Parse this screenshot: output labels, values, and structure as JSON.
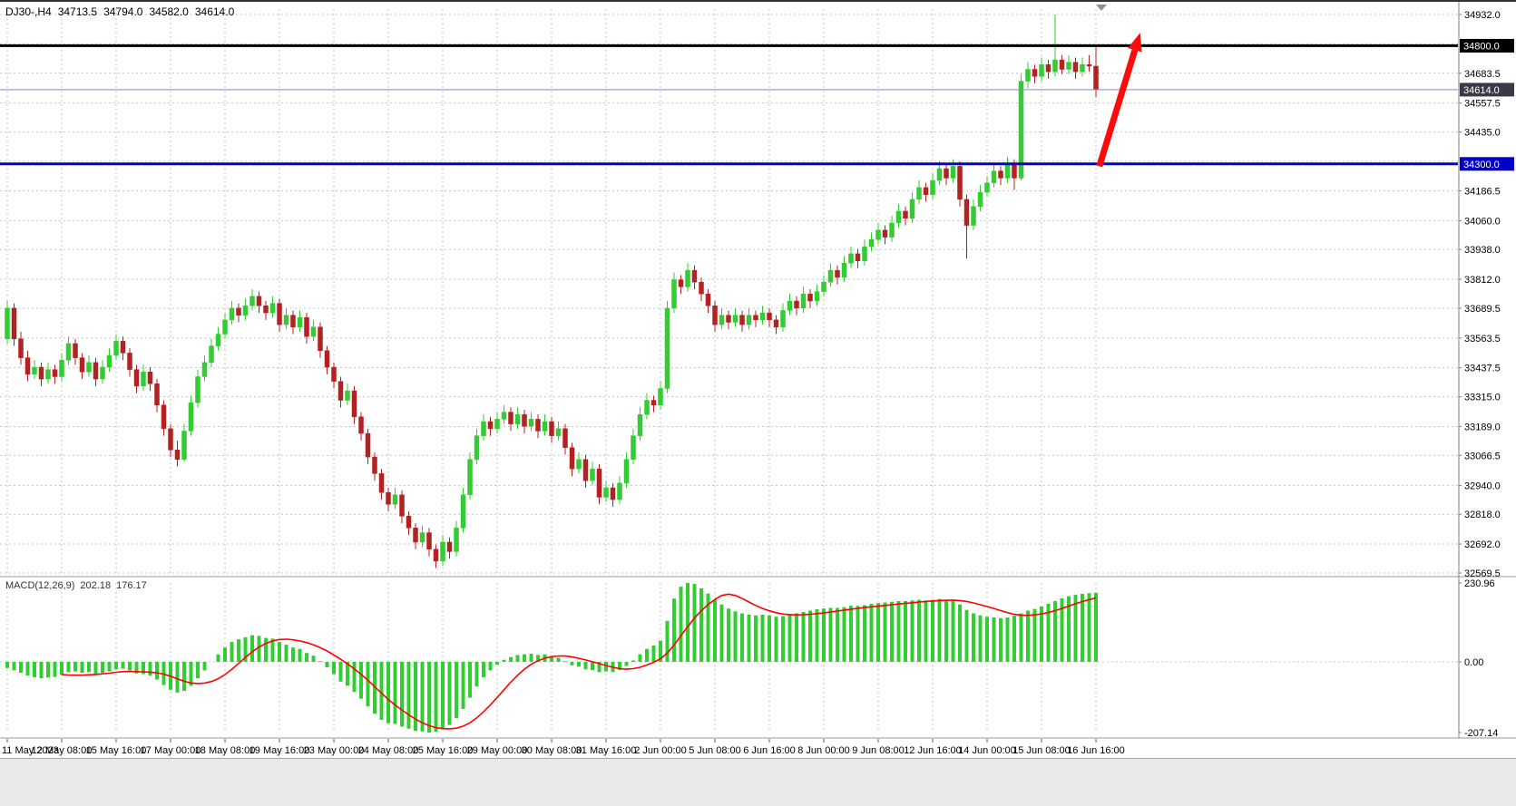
{
  "header": {
    "symbol_period": "DJ30-,H4",
    "open": "34713.5",
    "high": "34794.0",
    "low": "34582.0",
    "close": "34614.0"
  },
  "indicator": {
    "name": "MACD(12,26,9)",
    "main_value": "202.18",
    "signal_value": "176.17"
  },
  "colors": {
    "up_candle": "#33CC33",
    "down_candle": "#B22222",
    "grid": "#c4c4c4",
    "bid_line": "#8A8AB5",
    "axis_text": "#000000",
    "badge_text": "#FFFFFF",
    "separator": "#9a9a9a",
    "scale_border": "#808080"
  },
  "chart_data": [
    {
      "type": "candlestick",
      "symbol": "DJ30-",
      "timeframe": "H4",
      "title": "DJ30- H4 candlestick chart",
      "bars_per_label": 8,
      "x_labels": [
        "11 May 2023",
        "12 May 08:00",
        "15 May 16:00",
        "17 May 00:00",
        "18 May 08:00",
        "19 May 16:00",
        "23 May 00:00",
        "24 May 08:00",
        "25 May 16:00",
        "29 May 00:00",
        "30 May 08:00",
        "31 May 16:00",
        "2 Jun 00:00",
        "5 Jun 08:00",
        "6 Jun 16:00",
        "8 Jun 00:00",
        "9 Jun 08:00",
        "12 Jun 16:00",
        "14 Jun 00:00",
        "15 Jun 08:00",
        "16 Jun 16:00"
      ],
      "ylim": [
        32569.5,
        34932.0
      ],
      "y_ticks": [
        34932.0,
        34683.5,
        34557.5,
        34435.0,
        34186.5,
        34060.0,
        33938.0,
        33812.0,
        33689.5,
        33563.5,
        33437.5,
        33315.0,
        33189.0,
        33066.5,
        32940.0,
        32818.0,
        32692.0,
        32569.5
      ],
      "grid_levels": [
        34932.0,
        34808.5,
        34683.5,
        34557.5,
        34435.0,
        34311.5,
        34186.5,
        34060.0,
        33938.0,
        33812.0,
        33689.5,
        33563.5,
        33437.5,
        33315.0,
        33189.0,
        33066.5,
        32940.0,
        32818.0,
        32692.0,
        32569.5
      ],
      "hlines": [
        {
          "name": "resistance-line-34800",
          "value": 34800.0,
          "color": "#000000",
          "width": 3
        },
        {
          "name": "support-line-34300",
          "value": 34300.0,
          "color": "#0000C8",
          "width": 3
        }
      ],
      "current_price": 34614.0,
      "price_badges": [
        {
          "value": 34800.0,
          "bg": "#000000"
        },
        {
          "value": 34614.0,
          "bg": "#3A3A46"
        },
        {
          "value": 34300.0,
          "bg": "#0000C8"
        }
      ],
      "annotations": [
        {
          "type": "arrow",
          "color": "#FF0A0A",
          "x1_bar": 160.5,
          "y1": 34290,
          "x2_bar": 166.5,
          "y2": 34855
        }
      ],
      "candles": [
        [
          33560,
          33720,
          33540,
          33690
        ],
        [
          33690,
          33710,
          33530,
          33560
        ],
        [
          33560,
          33590,
          33450,
          33480
        ],
        [
          33480,
          33510,
          33380,
          33410
        ],
        [
          33410,
          33470,
          33390,
          33440
        ],
        [
          33440,
          33460,
          33360,
          33390
        ],
        [
          33390,
          33460,
          33370,
          33430
        ],
        [
          33430,
          33450,
          33370,
          33400
        ],
        [
          33400,
          33500,
          33380,
          33470
        ],
        [
          33470,
          33570,
          33450,
          33540
        ],
        [
          33540,
          33560,
          33450,
          33480
        ],
        [
          33480,
          33500,
          33390,
          33420
        ],
        [
          33420,
          33490,
          33400,
          33460
        ],
        [
          33460,
          33480,
          33360,
          33390
        ],
        [
          33390,
          33470,
          33370,
          33440
        ],
        [
          33440,
          33520,
          33420,
          33490
        ],
        [
          33490,
          33580,
          33470,
          33550
        ],
        [
          33550,
          33570,
          33470,
          33500
        ],
        [
          33500,
          33520,
          33400,
          33430
        ],
        [
          33430,
          33450,
          33330,
          33360
        ],
        [
          33360,
          33450,
          33340,
          33420
        ],
        [
          33420,
          33440,
          33340,
          33370
        ],
        [
          33370,
          33390,
          33250,
          33280
        ],
        [
          33280,
          33300,
          33150,
          33180
        ],
        [
          33180,
          33200,
          33060,
          33090
        ],
        [
          33090,
          33130,
          33020,
          33050
        ],
        [
          33050,
          33200,
          33040,
          33170
        ],
        [
          33170,
          33320,
          33150,
          33290
        ],
        [
          33290,
          33430,
          33270,
          33400
        ],
        [
          33400,
          33490,
          33380,
          33460
        ],
        [
          33460,
          33560,
          33440,
          33530
        ],
        [
          33530,
          33610,
          33510,
          33580
        ],
        [
          33580,
          33670,
          33560,
          33640
        ],
        [
          33640,
          33720,
          33620,
          33690
        ],
        [
          33690,
          33710,
          33630,
          33660
        ],
        [
          33660,
          33730,
          33640,
          33700
        ],
        [
          33700,
          33770,
          33680,
          33740
        ],
        [
          33740,
          33760,
          33670,
          33700
        ],
        [
          33700,
          33720,
          33640,
          33670
        ],
        [
          33670,
          33740,
          33650,
          33710
        ],
        [
          33710,
          33730,
          33590,
          33620
        ],
        [
          33620,
          33690,
          33600,
          33660
        ],
        [
          33660,
          33680,
          33580,
          33610
        ],
        [
          33610,
          33680,
          33590,
          33650
        ],
        [
          33650,
          33670,
          33540,
          33570
        ],
        [
          33570,
          33640,
          33550,
          33610
        ],
        [
          33610,
          33630,
          33480,
          33510
        ],
        [
          33510,
          33530,
          33410,
          33440
        ],
        [
          33440,
          33460,
          33350,
          33380
        ],
        [
          33380,
          33400,
          33270,
          33300
        ],
        [
          33300,
          33370,
          33280,
          33340
        ],
        [
          33340,
          33360,
          33200,
          33230
        ],
        [
          33230,
          33250,
          33130,
          33160
        ],
        [
          33160,
          33180,
          33030,
          33060
        ],
        [
          33060,
          33080,
          32960,
          32990
        ],
        [
          32990,
          33010,
          32880,
          32910
        ],
        [
          32910,
          32930,
          32830,
          32860
        ],
        [
          32860,
          32930,
          32840,
          32900
        ],
        [
          32900,
          32920,
          32780,
          32810
        ],
        [
          32810,
          32830,
          32730,
          32760
        ],
        [
          32760,
          32780,
          32670,
          32700
        ],
        [
          32700,
          32770,
          32680,
          32740
        ],
        [
          32740,
          32760,
          32640,
          32670
        ],
        [
          32670,
          32690,
          32590,
          32620
        ],
        [
          32620,
          32730,
          32600,
          32700
        ],
        [
          32700,
          32720,
          32630,
          32660
        ],
        [
          32660,
          32790,
          32640,
          32760
        ],
        [
          32760,
          32930,
          32740,
          32900
        ],
        [
          32900,
          33080,
          32880,
          33050
        ],
        [
          33050,
          33180,
          33030,
          33150
        ],
        [
          33150,
          33240,
          33130,
          33210
        ],
        [
          33210,
          33230,
          33150,
          33180
        ],
        [
          33180,
          33250,
          33160,
          33220
        ],
        [
          33220,
          33280,
          33200,
          33250
        ],
        [
          33250,
          33270,
          33170,
          33200
        ],
        [
          33200,
          33270,
          33180,
          33240
        ],
        [
          33240,
          33260,
          33160,
          33190
        ],
        [
          33190,
          33250,
          33170,
          33220
        ],
        [
          33220,
          33240,
          33140,
          33170
        ],
        [
          33170,
          33240,
          33150,
          33210
        ],
        [
          33210,
          33230,
          33120,
          33150
        ],
        [
          33150,
          33210,
          33130,
          33180
        ],
        [
          33180,
          33200,
          33070,
          33100
        ],
        [
          33100,
          33120,
          32980,
          33010
        ],
        [
          33010,
          33080,
          32990,
          33050
        ],
        [
          33050,
          33070,
          32930,
          32960
        ],
        [
          32960,
          33040,
          32940,
          33010
        ],
        [
          33010,
          33030,
          32860,
          32890
        ],
        [
          32890,
          32960,
          32870,
          32930
        ],
        [
          32930,
          32950,
          32850,
          32880
        ],
        [
          32880,
          32980,
          32860,
          32950
        ],
        [
          32950,
          33080,
          32930,
          33050
        ],
        [
          33050,
          33180,
          33030,
          33150
        ],
        [
          33150,
          33270,
          33130,
          33240
        ],
        [
          33240,
          33330,
          33220,
          33300
        ],
        [
          33300,
          33320,
          33250,
          33280
        ],
        [
          33280,
          33380,
          33260,
          33350
        ],
        [
          33350,
          33720,
          33330,
          33690
        ],
        [
          33690,
          33840,
          33670,
          33810
        ],
        [
          33810,
          33830,
          33750,
          33780
        ],
        [
          33780,
          33880,
          33760,
          33850
        ],
        [
          33850,
          33870,
          33770,
          33800
        ],
        [
          33800,
          33820,
          33720,
          33750
        ],
        [
          33750,
          33770,
          33670,
          33700
        ],
        [
          33700,
          33720,
          33590,
          33620
        ],
        [
          33620,
          33690,
          33600,
          33660
        ],
        [
          33660,
          33680,
          33600,
          33630
        ],
        [
          33630,
          33690,
          33610,
          33660
        ],
        [
          33660,
          33680,
          33590,
          33620
        ],
        [
          33620,
          33690,
          33600,
          33660
        ],
        [
          33660,
          33680,
          33610,
          33640
        ],
        [
          33640,
          33700,
          33620,
          33670
        ],
        [
          33670,
          33690,
          33610,
          33640
        ],
        [
          33640,
          33660,
          33580,
          33610
        ],
        [
          33610,
          33710,
          33590,
          33680
        ],
        [
          33680,
          33750,
          33660,
          33720
        ],
        [
          33720,
          33740,
          33660,
          33690
        ],
        [
          33690,
          33780,
          33670,
          33750
        ],
        [
          33750,
          33770,
          33690,
          33720
        ],
        [
          33720,
          33790,
          33700,
          33760
        ],
        [
          33760,
          33830,
          33740,
          33800
        ],
        [
          33800,
          33880,
          33780,
          33850
        ],
        [
          33850,
          33870,
          33790,
          33820
        ],
        [
          33820,
          33910,
          33800,
          33880
        ],
        [
          33880,
          33950,
          33860,
          33920
        ],
        [
          33920,
          33940,
          33860,
          33890
        ],
        [
          33890,
          33980,
          33870,
          33950
        ],
        [
          33950,
          34010,
          33930,
          33980
        ],
        [
          33980,
          34050,
          33960,
          34020
        ],
        [
          34020,
          34040,
          33960,
          33990
        ],
        [
          33990,
          34080,
          33970,
          34050
        ],
        [
          34050,
          34130,
          34030,
          34100
        ],
        [
          34100,
          34120,
          34040,
          34070
        ],
        [
          34070,
          34180,
          34050,
          34150
        ],
        [
          34150,
          34230,
          34130,
          34200
        ],
        [
          34200,
          34220,
          34140,
          34170
        ],
        [
          34170,
          34260,
          34150,
          34230
        ],
        [
          34230,
          34310,
          34210,
          34280
        ],
        [
          34280,
          34300,
          34210,
          34240
        ],
        [
          34240,
          34320,
          34220,
          34290
        ],
        [
          34290,
          34310,
          34120,
          34150
        ],
        [
          34150,
          34170,
          33900,
          34040
        ],
        [
          34040,
          34150,
          34020,
          34120
        ],
        [
          34120,
          34210,
          34100,
          34180
        ],
        [
          34180,
          34250,
          34160,
          34220
        ],
        [
          34220,
          34300,
          34200,
          34270
        ],
        [
          34270,
          34290,
          34210,
          34240
        ],
        [
          34240,
          34330,
          34220,
          34300
        ],
        [
          34300,
          34320,
          34190,
          34240
        ],
        [
          34240,
          34680,
          34230,
          34650
        ],
        [
          34650,
          34730,
          34620,
          34700
        ],
        [
          34700,
          34720,
          34640,
          34670
        ],
        [
          34670,
          34750,
          34650,
          34720
        ],
        [
          34720,
          34740,
          34660,
          34690
        ],
        [
          34690,
          34932,
          34670,
          34740
        ],
        [
          34740,
          34760,
          34680,
          34700
        ],
        [
          34700,
          34760,
          34680,
          34730
        ],
        [
          34730,
          34750,
          34660,
          34690
        ],
        [
          34690,
          34750,
          34670,
          34720
        ],
        [
          34720,
          34760,
          34690,
          34713.5
        ],
        [
          34713.5,
          34794,
          34582,
          34614
        ]
      ]
    },
    {
      "type": "bar",
      "name": "MACD(12,26,9)",
      "main_value": 202.18,
      "signal_value": 176.17,
      "ylim": [
        -207.14,
        230.96
      ],
      "y_ticks": [
        230.96,
        0,
        -207.14
      ],
      "bar_color": "#32CD32",
      "signal_color": "#FF0000",
      "signal_period": 9,
      "values": [
        -18,
        -25,
        -32,
        -40,
        -45,
        -48,
        -46,
        -44,
        -38,
        -30,
        -28,
        -32,
        -30,
        -36,
        -32,
        -28,
        -22,
        -20,
        -25,
        -34,
        -36,
        -40,
        -52,
        -68,
        -82,
        -90,
        -85,
        -70,
        -48,
        -25,
        0,
        22,
        42,
        58,
        66,
        72,
        78,
        76,
        70,
        68,
        58,
        50,
        42,
        38,
        26,
        18,
        2,
        -16,
        -36,
        -58,
        -70,
        -88,
        -108,
        -130,
        -152,
        -170,
        -180,
        -182,
        -190,
        -196,
        -202,
        -204,
        -207.14,
        -205,
        -196,
        -185,
        -165,
        -138,
        -105,
        -72,
        -45,
        -25,
        -8,
        6,
        14,
        20,
        22,
        24,
        20,
        22,
        16,
        12,
        2,
        -10,
        -14,
        -22,
        -24,
        -30,
        -28,
        -30,
        -24,
        -12,
        4,
        22,
        38,
        48,
        62,
        120,
        185,
        220,
        230.96,
        228,
        215,
        200,
        182,
        168,
        156,
        148,
        142,
        138,
        136,
        138,
        136,
        132,
        134,
        140,
        142,
        146,
        150,
        154,
        156,
        158,
        158,
        160,
        164,
        164,
        166,
        170,
        172,
        174,
        176,
        178,
        178,
        180,
        182,
        180,
        182,
        184,
        182,
        180,
        168,
        152,
        142,
        136,
        132,
        130,
        128,
        130,
        135,
        142,
        150,
        155,
        162,
        170,
        178,
        186,
        192,
        196,
        199,
        201,
        202.18
      ]
    }
  ]
}
